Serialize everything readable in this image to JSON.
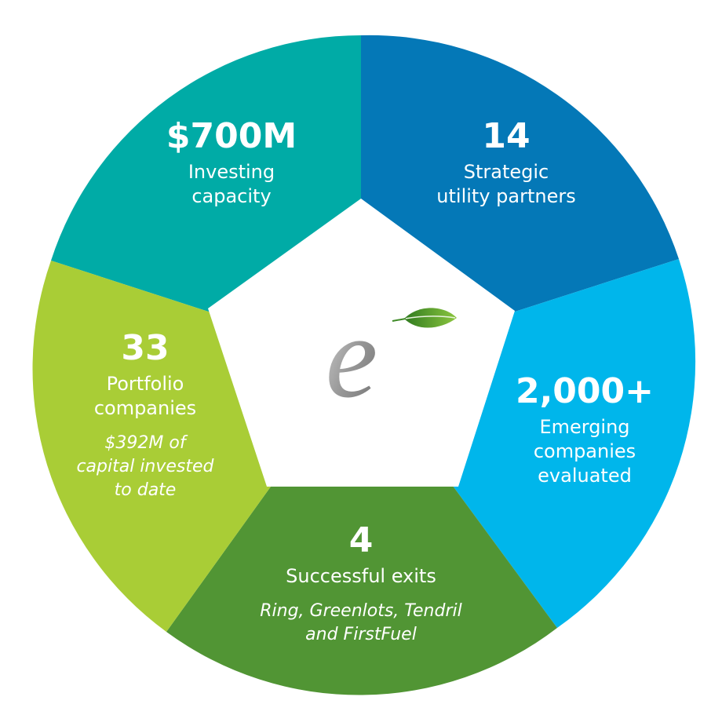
{
  "segments": {
    "investing": {
      "stat": "$700M",
      "label": "Investing\ncapacity",
      "color": "#00ABA6"
    },
    "partners": {
      "stat": "14",
      "label": "Strategic\nutility partners",
      "color": "#0478B7"
    },
    "emerging": {
      "stat": "2,000+",
      "label": "Emerging\ncompanies\nevaluated",
      "color": "#00B6EB"
    },
    "exits": {
      "stat": "4",
      "label": "Successful exits",
      "note": "Ring, Greenlots, Tendril\nand FirstFuel",
      "color": "#519534"
    },
    "portfolio": {
      "stat": "33",
      "label": "Portfolio\ncompanies",
      "note": "$392M of\ncapital invested\nto date",
      "color": "#A9CD36"
    }
  },
  "logo": {
    "icon": "e-leaf-logo",
    "letter_color": "#9a9a9a",
    "leaf_color": "#4f9a2c"
  }
}
